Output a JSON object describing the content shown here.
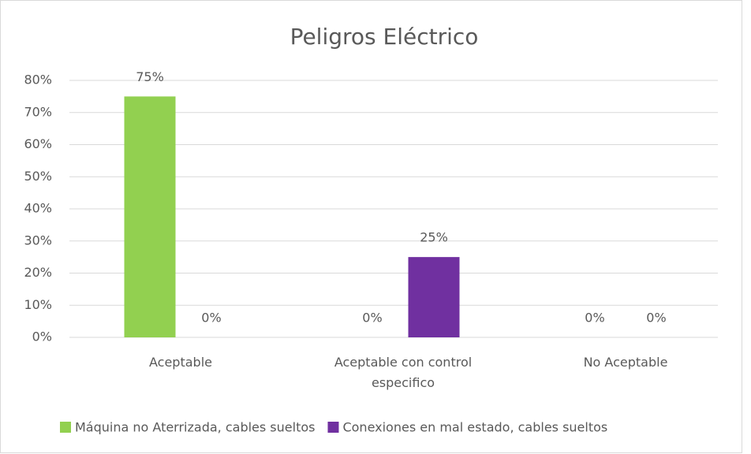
{
  "chart_data": {
    "type": "bar",
    "title": "Peligros Eléctrico",
    "categories": [
      "Aceptable",
      "Aceptable con control especifico",
      "No Aceptable"
    ],
    "series": [
      {
        "name": "Máquina no Aterrizada, cables sueltos",
        "color": "#92d050",
        "values": [
          75,
          0,
          0
        ],
        "value_labels": [
          "75%",
          "0%",
          "0%"
        ]
      },
      {
        "name": "Conexiones en mal estado, cables sueltos",
        "color": "#7030a0",
        "values": [
          0,
          25,
          0
        ],
        "value_labels": [
          "0%",
          "25%",
          "0%"
        ]
      }
    ],
    "ylim": [
      0,
      80
    ],
    "yticks": [
      {
        "value": 0,
        "label": "0%"
      },
      {
        "value": 10,
        "label": "10%"
      },
      {
        "value": 20,
        "label": "20%"
      },
      {
        "value": 30,
        "label": "30%"
      },
      {
        "value": 40,
        "label": "40%"
      },
      {
        "value": 50,
        "label": "50%"
      },
      {
        "value": 60,
        "label": "60%"
      },
      {
        "value": 70,
        "label": "70%"
      },
      {
        "value": 80,
        "label": "80%"
      }
    ],
    "grid": true,
    "legend": "bottom"
  }
}
